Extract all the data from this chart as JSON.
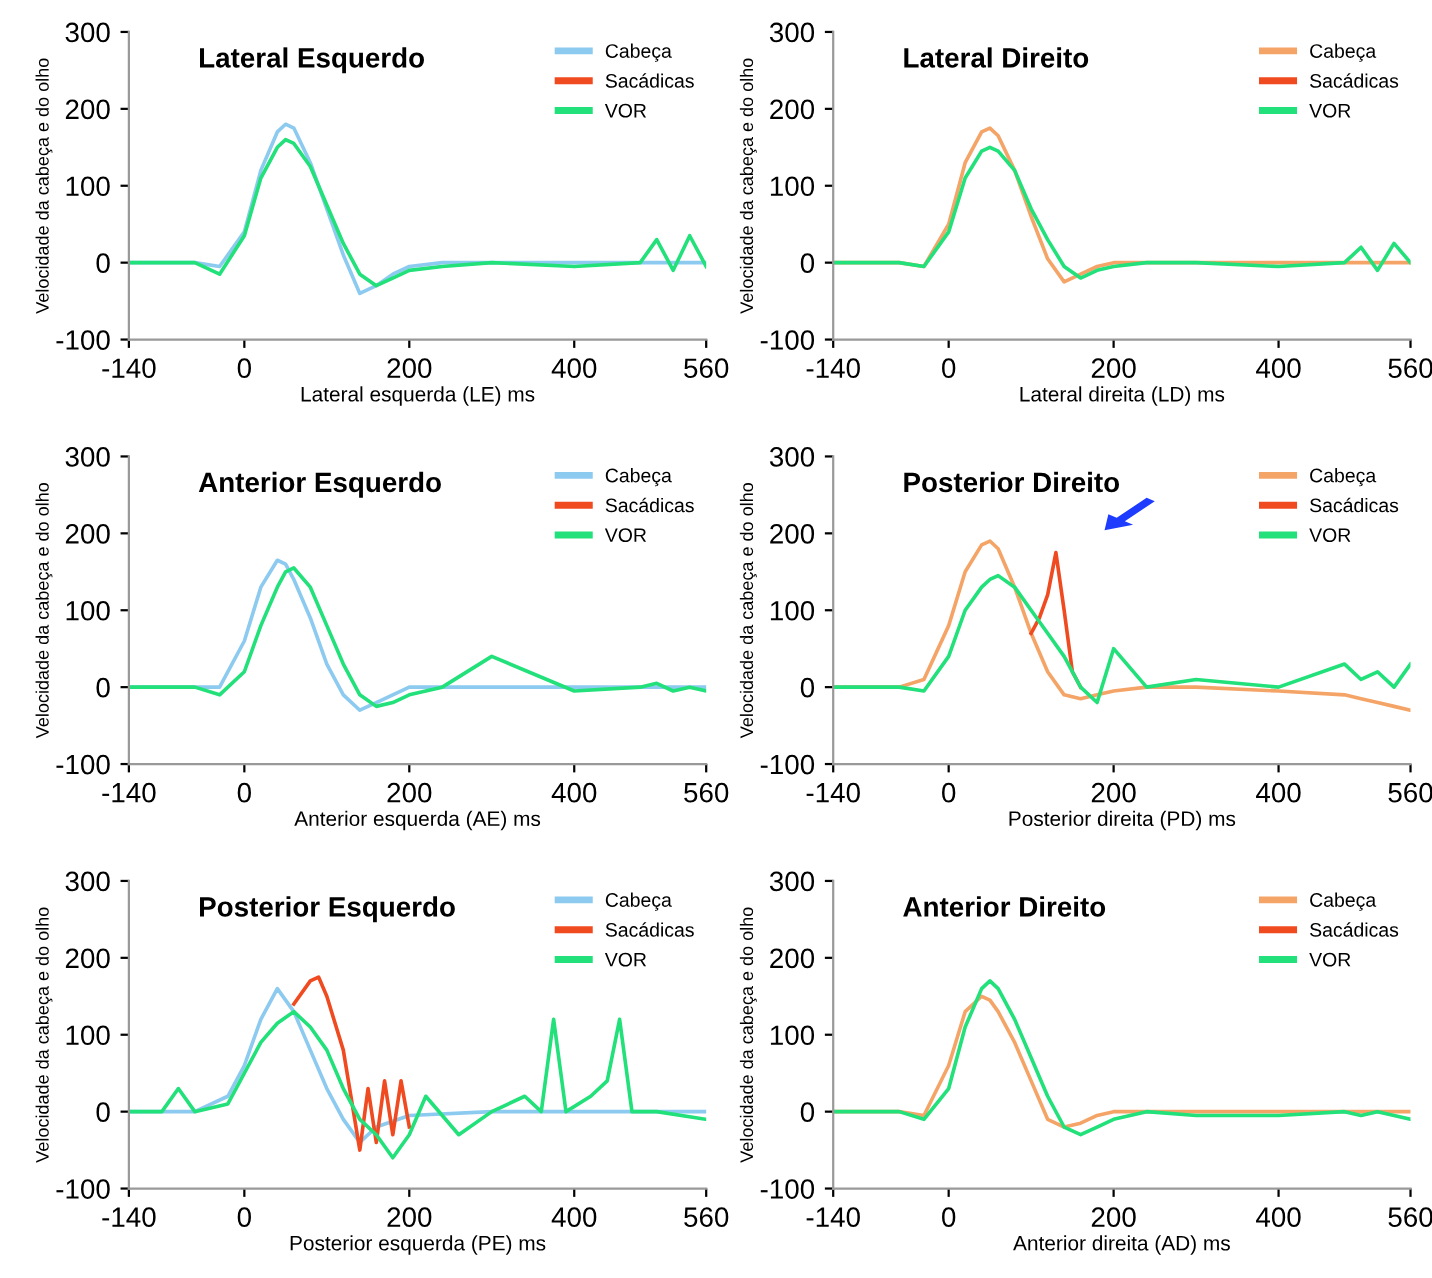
{
  "chart_data": [
    {
      "type": "line",
      "title": "Lateral Esquerdo",
      "xlabel": "Lateral esquerda (LE) ms",
      "ylabel": "Velocidade da cabeça e do olho",
      "xlim": [
        -140,
        560
      ],
      "xticks": [
        -140,
        0,
        200,
        400,
        560
      ],
      "ylim": [
        -100,
        300
      ],
      "yticks": [
        -100,
        0,
        100,
        200,
        300
      ],
      "grid": false,
      "legend": "top right",
      "marker": "none",
      "line_style": "solid",
      "x": [
        -140,
        -60,
        -30,
        0,
        20,
        40,
        50,
        60,
        80,
        100,
        120,
        140,
        160,
        180,
        200,
        240,
        300,
        400,
        480,
        500,
        520,
        540,
        560
      ],
      "series": [
        {
          "name": "Cabeça",
          "color": "#8ccaf0",
          "values": [
            0,
            0,
            -5,
            40,
            120,
            170,
            180,
            175,
            130,
            70,
            10,
            -40,
            -30,
            -15,
            -5,
            0,
            0,
            0,
            0,
            0,
            0,
            0,
            0
          ]
        },
        {
          "name": "Sacádicas",
          "color": "#f04a20",
          "values": [
            null,
            null,
            null,
            null,
            null,
            null,
            null,
            null,
            null,
            null,
            null,
            null,
            null,
            null,
            null,
            null,
            null,
            null,
            null,
            null,
            null,
            null,
            null
          ]
        },
        {
          "name": "VOR",
          "color": "#22e07a",
          "values": [
            0,
            0,
            -15,
            35,
            110,
            150,
            160,
            155,
            125,
            75,
            25,
            -15,
            -30,
            -20,
            -10,
            -5,
            0,
            -5,
            0,
            30,
            -10,
            35,
            -5
          ]
        }
      ]
    },
    {
      "type": "line",
      "title": "Lateral Direito",
      "xlabel": "Lateral direita (LD) ms",
      "ylabel": "Velocidade da cabeça e do olho",
      "xlim": [
        -140,
        560
      ],
      "xticks": [
        -140,
        0,
        200,
        400,
        560
      ],
      "ylim": [
        -100,
        300
      ],
      "yticks": [
        -100,
        0,
        100,
        200,
        300
      ],
      "grid": false,
      "legend": "top right",
      "marker": "none",
      "line_style": "solid",
      "x": [
        -140,
        -60,
        -30,
        0,
        20,
        40,
        50,
        60,
        80,
        100,
        120,
        140,
        160,
        180,
        200,
        240,
        300,
        400,
        480,
        500,
        520,
        540,
        560
      ],
      "series": [
        {
          "name": "Cabeça",
          "color": "#f5a468",
          "values": [
            0,
            0,
            -5,
            50,
            130,
            170,
            175,
            165,
            120,
            60,
            5,
            -25,
            -15,
            -5,
            0,
            0,
            0,
            0,
            0,
            0,
            0,
            0,
            0
          ]
        },
        {
          "name": "Sacádicas",
          "color": "#f04a20",
          "values": [
            null,
            null,
            null,
            null,
            null,
            null,
            null,
            null,
            null,
            null,
            null,
            null,
            null,
            null,
            null,
            null,
            null,
            null,
            null,
            null,
            null,
            null,
            null
          ]
        },
        {
          "name": "VOR",
          "color": "#22e07a",
          "values": [
            0,
            0,
            -5,
            40,
            110,
            145,
            150,
            145,
            120,
            70,
            30,
            -5,
            -20,
            -10,
            -5,
            0,
            0,
            -5,
            0,
            20,
            -10,
            25,
            0
          ]
        }
      ]
    },
    {
      "type": "line",
      "title": "Anterior Esquerdo",
      "xlabel": "Anterior esquerda (AE) ms",
      "ylabel": "Velocidade da cabeça e do olho",
      "xlim": [
        -140,
        560
      ],
      "xticks": [
        -140,
        0,
        200,
        400,
        560
      ],
      "ylim": [
        -100,
        300
      ],
      "yticks": [
        -100,
        0,
        100,
        200,
        300
      ],
      "grid": false,
      "legend": "top right",
      "marker": "none",
      "line_style": "solid",
      "x": [
        -140,
        -60,
        -30,
        0,
        20,
        40,
        50,
        60,
        80,
        100,
        120,
        140,
        160,
        180,
        200,
        240,
        300,
        400,
        480,
        500,
        520,
        540,
        560
      ],
      "series": [
        {
          "name": "Cabeça",
          "color": "#8ccaf0",
          "values": [
            0,
            0,
            0,
            60,
            130,
            165,
            160,
            140,
            90,
            30,
            -10,
            -30,
            -20,
            -10,
            0,
            0,
            0,
            0,
            0,
            0,
            0,
            0,
            0
          ]
        },
        {
          "name": "Sacádicas",
          "color": "#f04a20",
          "values": [
            null,
            null,
            null,
            null,
            null,
            null,
            null,
            null,
            null,
            null,
            null,
            null,
            null,
            null,
            null,
            null,
            null,
            null,
            null,
            null,
            null,
            null,
            null
          ]
        },
        {
          "name": "VOR",
          "color": "#22e07a",
          "values": [
            0,
            0,
            -10,
            20,
            80,
            130,
            150,
            155,
            130,
            80,
            30,
            -10,
            -25,
            -20,
            -10,
            0,
            40,
            -5,
            0,
            5,
            -5,
            0,
            -5
          ]
        }
      ]
    },
    {
      "type": "line",
      "title": "Posterior Direito",
      "xlabel": "Posterior direita (PD) ms",
      "ylabel": "Velocidade da cabeça e do olho",
      "xlim": [
        -140,
        560
      ],
      "xticks": [
        -140,
        0,
        200,
        400,
        560
      ],
      "ylim": [
        -100,
        300
      ],
      "yticks": [
        -100,
        0,
        100,
        200,
        300
      ],
      "grid": false,
      "legend": "top right",
      "marker": "none",
      "line_style": "solid",
      "x": [
        -140,
        -60,
        -30,
        0,
        20,
        40,
        50,
        60,
        80,
        100,
        120,
        140,
        160,
        180,
        200,
        240,
        300,
        400,
        480,
        500,
        520,
        540,
        560
      ],
      "series": [
        {
          "name": "Cabeça",
          "color": "#f5a468",
          "values": [
            0,
            0,
            10,
            80,
            150,
            185,
            190,
            180,
            130,
            70,
            20,
            -10,
            -15,
            -10,
            -5,
            0,
            0,
            -5,
            -10,
            -15,
            -20,
            -25,
            -30
          ]
        },
        {
          "name": "Sacádicas",
          "color": "#f04a20",
          "x": [
            100,
            110,
            120,
            130,
            140,
            150,
            160
          ],
          "values": [
            70,
            90,
            120,
            175,
            100,
            20,
            0
          ]
        },
        {
          "name": "VOR",
          "color": "#22e07a",
          "values": [
            0,
            0,
            -5,
            40,
            100,
            130,
            140,
            145,
            130,
            100,
            70,
            40,
            0,
            -20,
            50,
            0,
            10,
            0,
            30,
            10,
            20,
            0,
            30
          ]
        }
      ]
    },
    {
      "type": "line",
      "title": "Posterior Esquerdo",
      "xlabel": "Posterior esquerda (PE) ms",
      "ylabel": "Velocidade da cabeça e do olho",
      "xlim": [
        -140,
        560
      ],
      "xticks": [
        -140,
        0,
        200,
        400,
        560
      ],
      "ylim": [
        -100,
        300
      ],
      "yticks": [
        -100,
        0,
        100,
        200,
        300
      ],
      "grid": false,
      "legend": "top right",
      "marker": "none",
      "line_style": "solid",
      "series": [
        {
          "name": "Cabeça",
          "color": "#8ccaf0",
          "x": [
            -140,
            -60,
            -20,
            0,
            20,
            40,
            60,
            80,
            100,
            120,
            140,
            160,
            200,
            300,
            560
          ],
          "values": [
            0,
            0,
            20,
            60,
            120,
            160,
            130,
            80,
            30,
            -10,
            -40,
            -20,
            -5,
            0,
            0
          ]
        },
        {
          "name": "Sacádicas",
          "color": "#f04a20",
          "x": [
            60,
            80,
            90,
            100,
            120,
            140,
            150,
            160,
            170,
            180,
            190,
            200
          ],
          "values": [
            140,
            170,
            175,
            150,
            80,
            -50,
            30,
            -40,
            40,
            -30,
            40,
            -20
          ]
        },
        {
          "name": "VOR",
          "color": "#22e07a",
          "x": [
            -140,
            -100,
            -80,
            -60,
            -20,
            0,
            20,
            40,
            60,
            80,
            100,
            120,
            140,
            160,
            180,
            200,
            220,
            260,
            300,
            340,
            360,
            375,
            390,
            420,
            440,
            455,
            470,
            500,
            560
          ],
          "values": [
            0,
            0,
            30,
            0,
            10,
            50,
            90,
            115,
            130,
            110,
            80,
            30,
            -10,
            -30,
            -60,
            -30,
            20,
            -30,
            0,
            20,
            0,
            120,
            0,
            20,
            40,
            120,
            0,
            0,
            -10
          ]
        }
      ]
    },
    {
      "type": "line",
      "title": "Anterior Direito",
      "xlabel": "Anterior direita (AD) ms",
      "ylabel": "Velocidade da cabeça e do olho",
      "xlim": [
        -140,
        560
      ],
      "xticks": [
        -140,
        0,
        200,
        400,
        560
      ],
      "ylim": [
        -100,
        300
      ],
      "yticks": [
        -100,
        0,
        100,
        200,
        300
      ],
      "grid": false,
      "legend": "top right",
      "marker": "none",
      "line_style": "solid",
      "x": [
        -140,
        -60,
        -30,
        0,
        20,
        40,
        50,
        60,
        80,
        100,
        120,
        140,
        160,
        180,
        200,
        240,
        300,
        400,
        480,
        500,
        520,
        540,
        560
      ],
      "series": [
        {
          "name": "Cabeça",
          "color": "#f5a468",
          "values": [
            0,
            0,
            -5,
            60,
            130,
            150,
            145,
            130,
            90,
            40,
            -10,
            -20,
            -15,
            -5,
            0,
            0,
            0,
            0,
            0,
            0,
            0,
            0,
            0
          ]
        },
        {
          "name": "Sacádicas",
          "color": "#f04a20",
          "values": [
            null,
            null,
            null,
            null,
            null,
            null,
            null,
            null,
            null,
            null,
            null,
            null,
            null,
            null,
            null,
            null,
            null,
            null,
            null,
            null,
            null,
            null,
            null
          ]
        },
        {
          "name": "VOR",
          "color": "#22e07a",
          "values": [
            0,
            0,
            -10,
            30,
            110,
            160,
            170,
            160,
            120,
            70,
            20,
            -20,
            -30,
            -20,
            -10,
            0,
            -5,
            -5,
            0,
            -5,
            0,
            -5,
            -10
          ]
        }
      ]
    }
  ]
}
